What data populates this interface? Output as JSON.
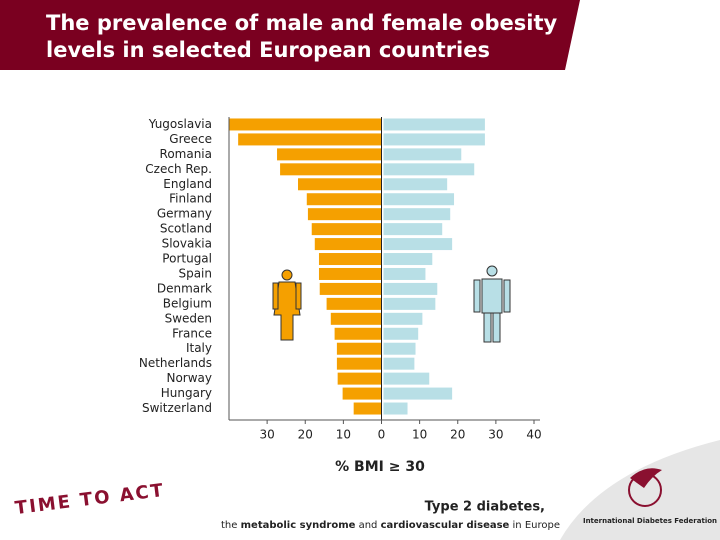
{
  "chart_data": {
    "type": "butterfly",
    "title": "The prevalence of male and female obesity levels in selected European countries",
    "categories": [
      "Yugoslavia",
      "Greece",
      "Romania",
      "Czech Rep.",
      "England",
      "Finland",
      "Germany",
      "Scotland",
      "Slovakia",
      "Portugal",
      "Spain",
      "Denmark",
      "Belgium",
      "Sweden",
      "France",
      "Italy",
      "Netherlands",
      "Norway",
      "Hungary",
      "Switzerland"
    ],
    "series": [
      {
        "color": "#f5a000",
        "values": [
          40,
          37.6,
          27.4,
          26.6,
          21.9,
          19.6,
          19.3,
          18.3,
          17.5,
          16.4,
          16.4,
          16.2,
          14.4,
          13.3,
          12.3,
          11.7,
          11.7,
          11.5,
          10.2,
          7.3
        ]
      },
      {
        "color": "#b8dfe6",
        "values": [
          26.6,
          26.6,
          20.4,
          23.8,
          16.7,
          18.5,
          17.5,
          15.4,
          18,
          12.8,
          11,
          14.1,
          13.6,
          10.2,
          9.1,
          8.4,
          8.1,
          12,
          18,
          6.3
        ]
      }
    ],
    "xlim": [
      -40,
      40
    ],
    "xticks": [
      {
        "value": -30,
        "label": "30"
      },
      {
        "value": -20,
        "label": "20"
      },
      {
        "value": -10,
        "label": "10"
      },
      0,
      10,
      20,
      30,
      40
    ],
    "xlabel": "% BMI ≥ 30"
  },
  "footer": {
    "slogan": "TIME TO ACT",
    "heading": "Type 2 diabetes,",
    "tagline": [
      "the",
      "metabolic syndrome",
      "and",
      "cardiovascular disease",
      "in Europe"
    ],
    "logo": "International Diabetes Federation"
  }
}
